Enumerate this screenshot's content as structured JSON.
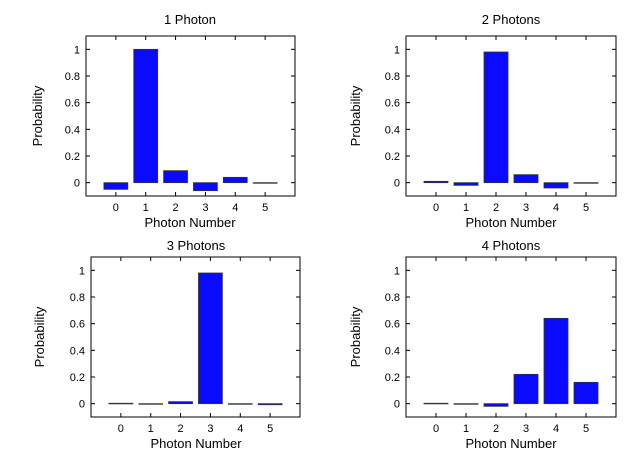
{
  "chart_data": [
    {
      "type": "bar",
      "title": "1 Photon",
      "xlabel": "Photon Number",
      "ylabel": "Probability",
      "categories": [
        "0",
        "1",
        "2",
        "3",
        "4",
        "5"
      ],
      "values": [
        -0.05,
        1.0,
        0.09,
        -0.06,
        0.04,
        0.0
      ],
      "xlim": [
        -1,
        6
      ],
      "ylim": [
        -0.1,
        1.1
      ],
      "yticks": [
        "0",
        "0.2",
        "0.4",
        "0.6",
        "0.8",
        "1"
      ],
      "ytick_values": [
        0,
        0.2,
        0.4,
        0.6,
        0.8,
        1
      ],
      "bar_color": "#0a0aff"
    },
    {
      "type": "bar",
      "title": "2 Photons",
      "xlabel": "Photon Number",
      "ylabel": "Probability",
      "categories": [
        "0",
        "1",
        "2",
        "3",
        "4",
        "5"
      ],
      "values": [
        0.01,
        -0.02,
        0.98,
        0.06,
        -0.04,
        0.0
      ],
      "xlim": [
        -1,
        6
      ],
      "ylim": [
        -0.1,
        1.1
      ],
      "yticks": [
        "0",
        "0.2",
        "0.4",
        "0.6",
        "0.8",
        "1"
      ],
      "ytick_values": [
        0,
        0.2,
        0.4,
        0.6,
        0.8,
        1
      ],
      "bar_color": "#0a0aff"
    },
    {
      "type": "bar",
      "title": "3 Photons",
      "xlabel": "Photon Number",
      "ylabel": "Probability",
      "categories": [
        "0",
        "1",
        "2",
        "3",
        "4",
        "5"
      ],
      "values": [
        0.003,
        -0.003,
        0.015,
        0.98,
        -0.003,
        -0.008
      ],
      "xlim": [
        -1,
        6
      ],
      "ylim": [
        -0.1,
        1.1
      ],
      "yticks": [
        "0",
        "0.2",
        "0.4",
        "0.6",
        "0.8",
        "1"
      ],
      "ytick_values": [
        0,
        0.2,
        0.4,
        0.6,
        0.8,
        1
      ],
      "bar_color": "#0a0aff"
    },
    {
      "type": "bar",
      "title": "4 Photons",
      "xlabel": "Photon Number",
      "ylabel": "Probability",
      "categories": [
        "0",
        "1",
        "2",
        "3",
        "4",
        "5"
      ],
      "values": [
        0.003,
        -0.003,
        -0.02,
        0.22,
        0.64,
        0.16
      ],
      "xlim": [
        -1,
        6
      ],
      "ylim": [
        -0.1,
        1.1
      ],
      "yticks": [
        "0",
        "0.2",
        "0.4",
        "0.6",
        "0.8",
        "1"
      ],
      "ytick_values": [
        0,
        0.2,
        0.4,
        0.6,
        0.8,
        1
      ],
      "bar_color": "#0a0aff"
    }
  ]
}
